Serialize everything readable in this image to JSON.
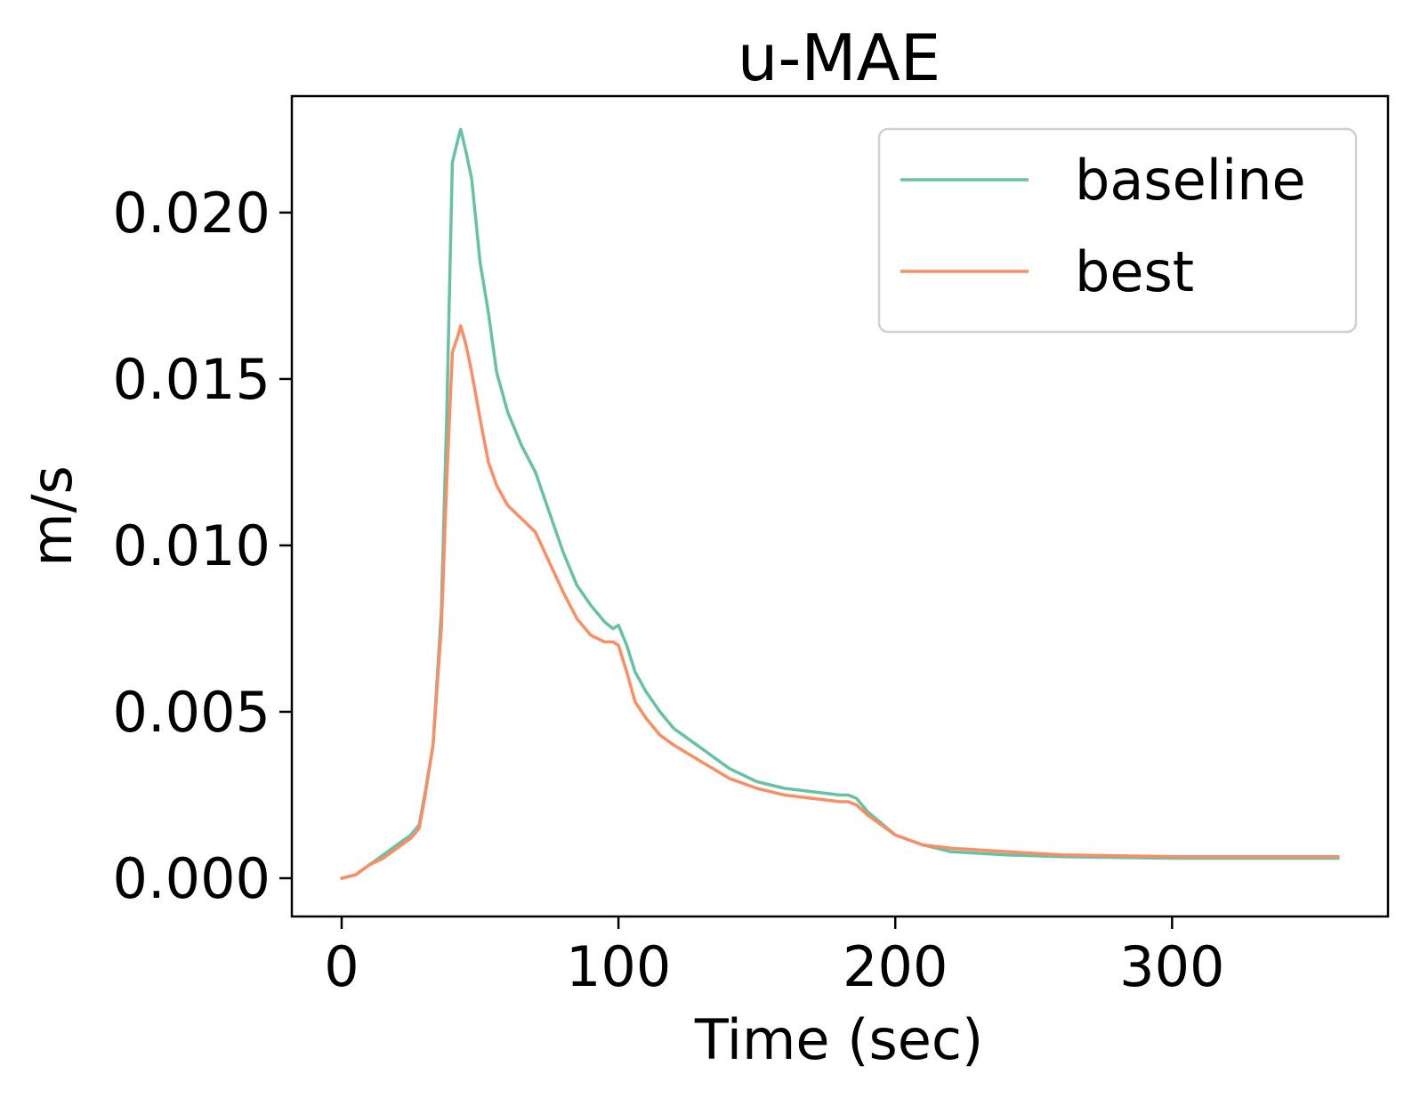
{
  "chart_data": {
    "type": "line",
    "title": "u-MAE",
    "xlabel": "Time (sec)",
    "ylabel": "m/s",
    "xlim": [
      -18,
      378
    ],
    "ylim": [
      -0.00115,
      0.0235
    ],
    "xticks": [
      0,
      100,
      200,
      300
    ],
    "xtick_labels": [
      "0",
      "100",
      "200",
      "300"
    ],
    "yticks": [
      0.0,
      0.005,
      0.01,
      0.015,
      0.02
    ],
    "ytick_labels": [
      "0.000",
      "0.005",
      "0.010",
      "0.015",
      "0.020"
    ],
    "grid": false,
    "legend_position": "top-right",
    "series": [
      {
        "name": "baseline",
        "color": "#66c2a5",
        "x": [
          0,
          5,
          10,
          15,
          20,
          25,
          28,
          30,
          33,
          36,
          38,
          40,
          42,
          43,
          45,
          47,
          50,
          53,
          56,
          60,
          65,
          70,
          75,
          80,
          85,
          90,
          95,
          98,
          100,
          103,
          106,
          110,
          115,
          120,
          130,
          140,
          150,
          160,
          170,
          180,
          183,
          186,
          190,
          200,
          210,
          220,
          240,
          260,
          300,
          360
        ],
        "y": [
          0.0,
          0.0001,
          0.0004,
          0.0007,
          0.001,
          0.0013,
          0.0016,
          0.0025,
          0.004,
          0.008,
          0.014,
          0.0215,
          0.0222,
          0.0225,
          0.0218,
          0.021,
          0.0185,
          0.017,
          0.0152,
          0.014,
          0.013,
          0.0122,
          0.011,
          0.0098,
          0.0088,
          0.0082,
          0.0077,
          0.0075,
          0.0076,
          0.007,
          0.0062,
          0.0056,
          0.005,
          0.0045,
          0.0039,
          0.0033,
          0.0029,
          0.0027,
          0.0026,
          0.0025,
          0.0025,
          0.0024,
          0.002,
          0.0013,
          0.001,
          0.0008,
          0.0007,
          0.00065,
          0.0006,
          0.0006
        ]
      },
      {
        "name": "best",
        "color": "#fc8d62",
        "x": [
          0,
          5,
          10,
          15,
          20,
          25,
          28,
          30,
          33,
          36,
          38,
          40,
          42,
          43,
          45,
          47,
          50,
          53,
          56,
          60,
          65,
          70,
          75,
          80,
          85,
          90,
          95,
          98,
          100,
          103,
          106,
          110,
          115,
          120,
          130,
          140,
          150,
          160,
          170,
          180,
          183,
          186,
          190,
          200,
          210,
          220,
          240,
          260,
          300,
          360
        ],
        "y": [
          0.0,
          0.0001,
          0.0004,
          0.0006,
          0.0009,
          0.0012,
          0.0015,
          0.0024,
          0.004,
          0.0075,
          0.012,
          0.0158,
          0.0163,
          0.0166,
          0.016,
          0.0152,
          0.0138,
          0.0125,
          0.0118,
          0.0112,
          0.0108,
          0.0104,
          0.0095,
          0.0086,
          0.0078,
          0.0073,
          0.0071,
          0.0071,
          0.007,
          0.0062,
          0.0053,
          0.0048,
          0.0043,
          0.004,
          0.0035,
          0.003,
          0.0027,
          0.0025,
          0.0024,
          0.0023,
          0.0023,
          0.0022,
          0.0019,
          0.0013,
          0.001,
          0.0009,
          0.0008,
          0.0007,
          0.00065,
          0.00065
        ]
      }
    ]
  }
}
